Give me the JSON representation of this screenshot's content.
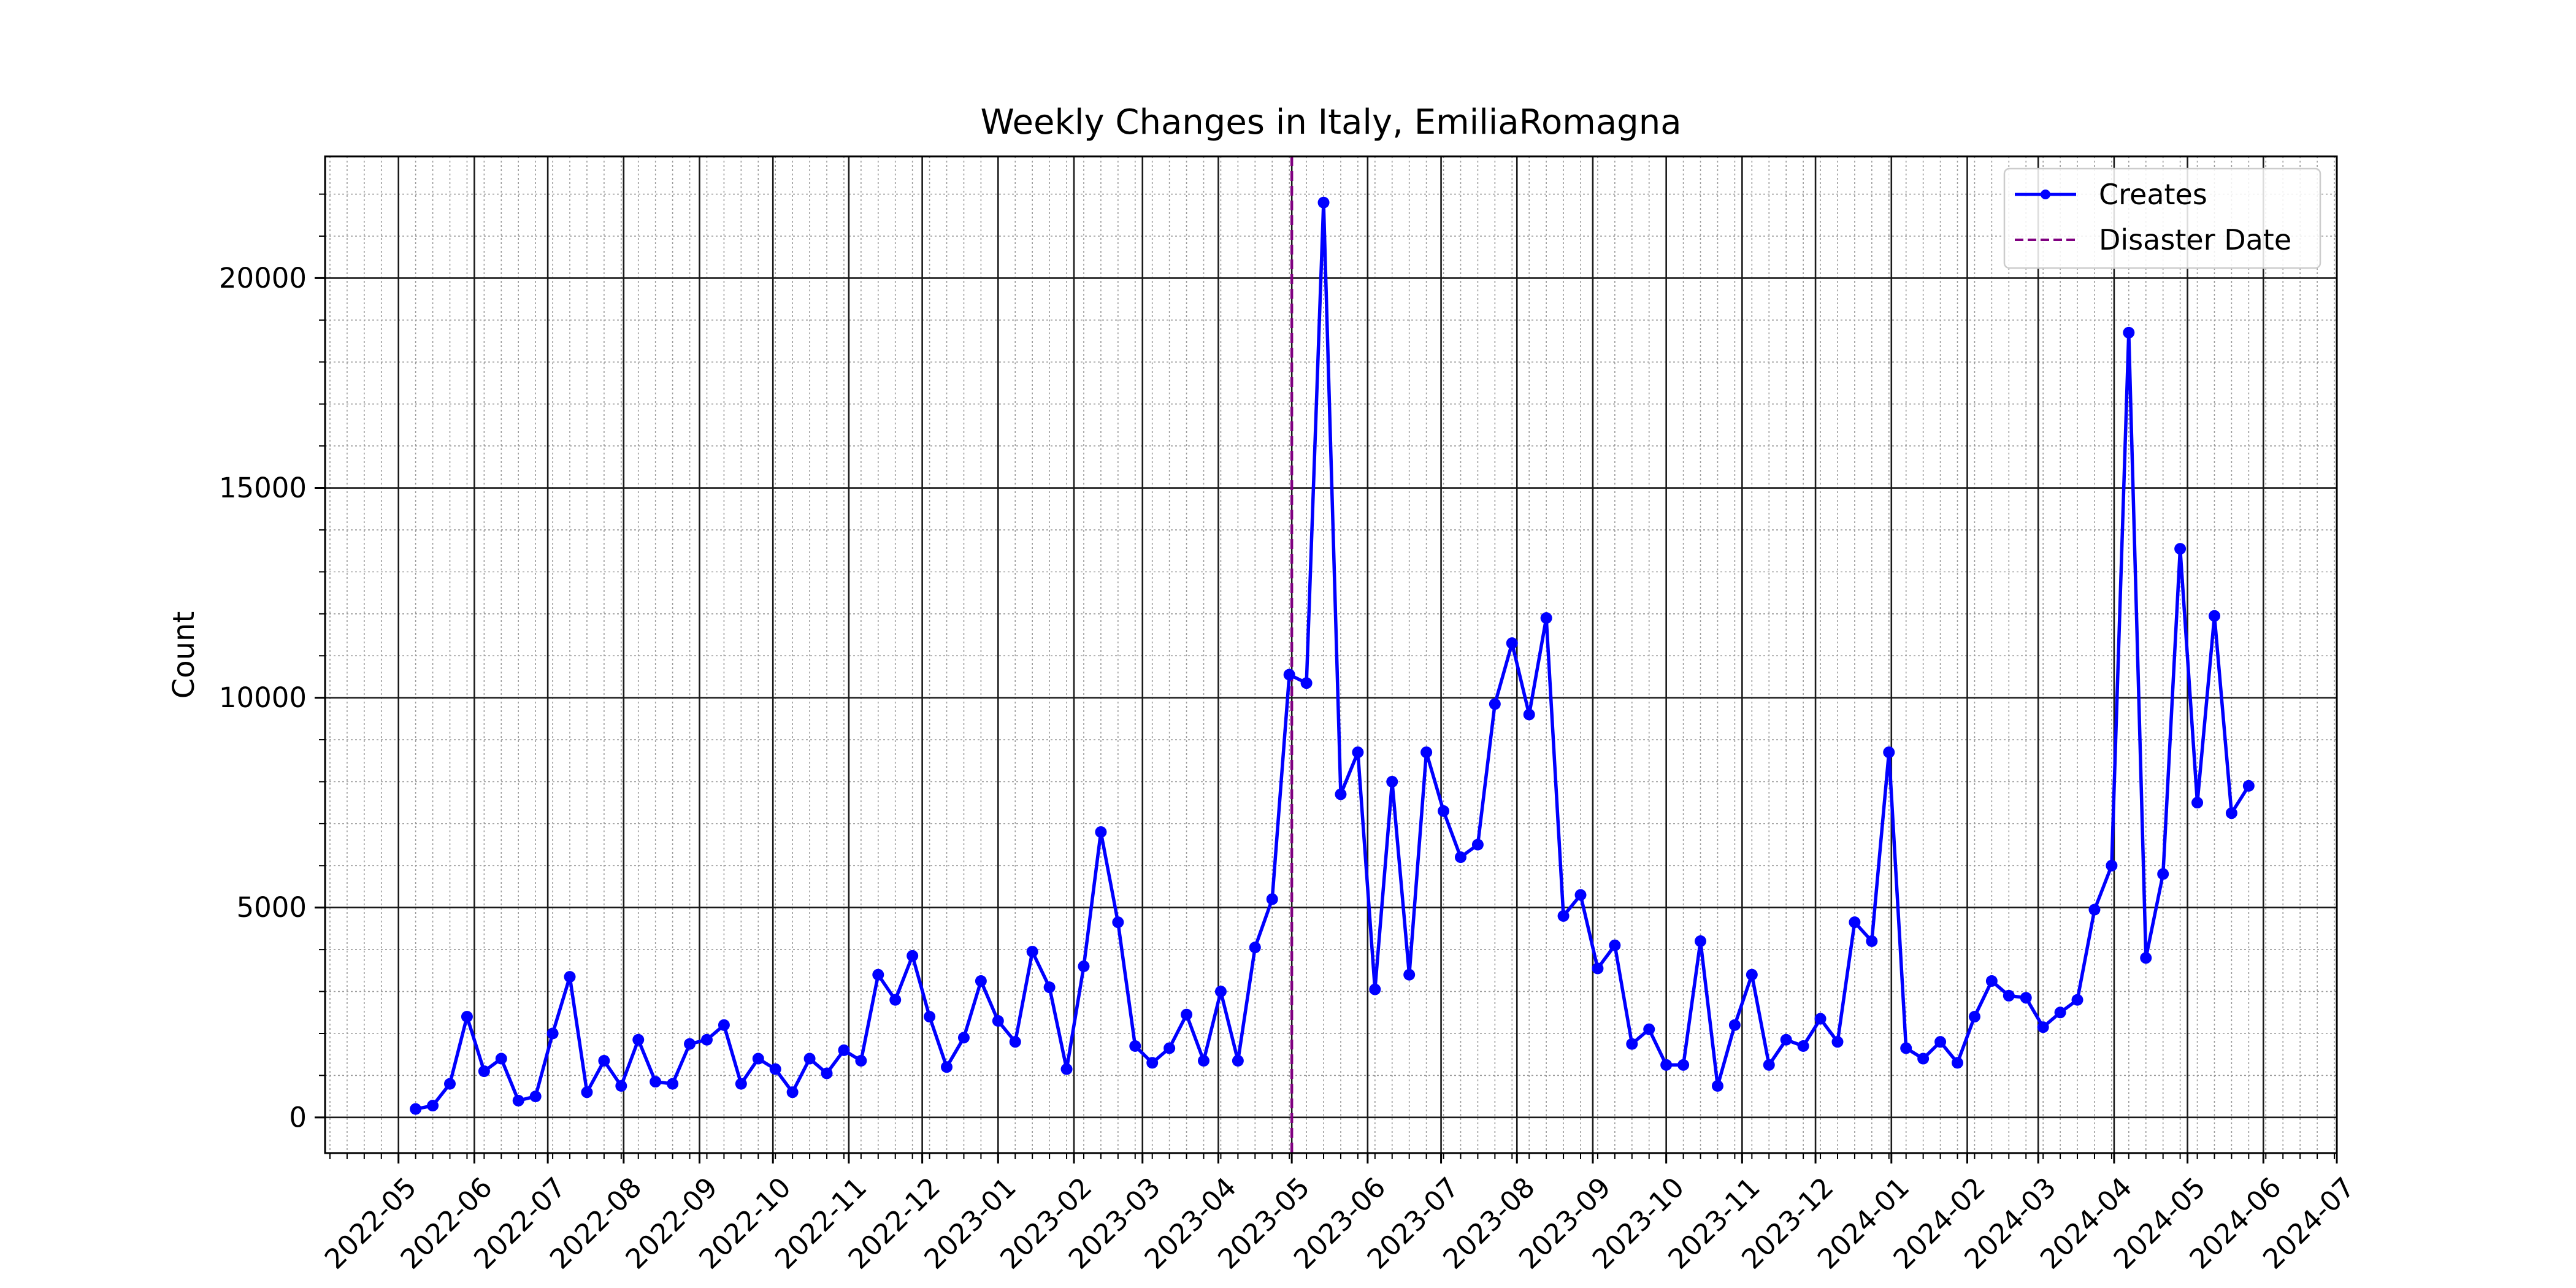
{
  "chart_data": {
    "type": "line",
    "title": "Weekly Changes in Italy, EmiliaRomagna",
    "xlabel": "",
    "ylabel": "Count",
    "x_axis_kind": "date",
    "xlim": [
      "2022-04-01",
      "2024-07-01"
    ],
    "ylim": [
      -850,
      22900
    ],
    "y_ticks": [
      0,
      5000,
      10000,
      15000,
      20000
    ],
    "y_tick_labels": [
      "0",
      "5000",
      "10000",
      "15000",
      "20000"
    ],
    "y_minor_step": 1000,
    "x_ticks": [
      "2022-05-01",
      "2022-06-01",
      "2022-07-01",
      "2022-08-01",
      "2022-09-01",
      "2022-10-01",
      "2022-11-01",
      "2022-12-01",
      "2023-01-01",
      "2023-02-01",
      "2023-03-01",
      "2023-04-01",
      "2023-05-01",
      "2023-06-01",
      "2023-07-01",
      "2023-08-01",
      "2023-09-01",
      "2023-10-01",
      "2023-11-01",
      "2023-12-01",
      "2024-01-01",
      "2024-02-01",
      "2024-03-01",
      "2024-04-01",
      "2024-05-01",
      "2024-06-01",
      "2024-07-01"
    ],
    "x_tick_labels": [
      "2022-05",
      "2022-06",
      "2022-07",
      "2022-08",
      "2022-09",
      "2022-10",
      "2022-11",
      "2022-12",
      "2023-01",
      "2023-02",
      "2023-03",
      "2023-04",
      "2023-05",
      "2023-06",
      "2023-07",
      "2023-08",
      "2023-09",
      "2023-10",
      "2023-11",
      "2023-12",
      "2024-01",
      "2024-02",
      "2024-03",
      "2024-04",
      "2024-05",
      "2024-06",
      "2024-07"
    ],
    "grid": true,
    "legend_position": "upper right",
    "series": [
      {
        "name": "Creates",
        "color": "#0000ff",
        "marker": "circle",
        "x": [
          "2022-05-08",
          "2022-05-15",
          "2022-05-22",
          "2022-05-29",
          "2022-06-05",
          "2022-06-12",
          "2022-06-19",
          "2022-06-26",
          "2022-07-03",
          "2022-07-10",
          "2022-07-17",
          "2022-07-24",
          "2022-07-31",
          "2022-08-07",
          "2022-08-14",
          "2022-08-21",
          "2022-08-28",
          "2022-09-04",
          "2022-09-11",
          "2022-09-18",
          "2022-09-25",
          "2022-10-02",
          "2022-10-09",
          "2022-10-16",
          "2022-10-23",
          "2022-10-30",
          "2022-11-06",
          "2022-11-13",
          "2022-11-20",
          "2022-11-27",
          "2022-12-04",
          "2022-12-11",
          "2022-12-18",
          "2022-12-25",
          "2023-01-01",
          "2023-01-08",
          "2023-01-15",
          "2023-01-22",
          "2023-01-29",
          "2023-02-05",
          "2023-02-12",
          "2023-02-19",
          "2023-02-26",
          "2023-03-05",
          "2023-03-12",
          "2023-03-19",
          "2023-03-26",
          "2023-04-02",
          "2023-04-09",
          "2023-04-16",
          "2023-04-23",
          "2023-04-30",
          "2023-05-07",
          "2023-05-14",
          "2023-05-21",
          "2023-05-28",
          "2023-06-04",
          "2023-06-11",
          "2023-06-18",
          "2023-06-25",
          "2023-07-02",
          "2023-07-09",
          "2023-07-16",
          "2023-07-23",
          "2023-07-30",
          "2023-08-06",
          "2023-08-13",
          "2023-08-20",
          "2023-08-27",
          "2023-09-03",
          "2023-09-10",
          "2023-09-17",
          "2023-09-24",
          "2023-10-01",
          "2023-10-08",
          "2023-10-15",
          "2023-10-22",
          "2023-10-29",
          "2023-11-05",
          "2023-11-12",
          "2023-11-19",
          "2023-11-26",
          "2023-12-03",
          "2023-12-10",
          "2023-12-17",
          "2023-12-24",
          "2023-12-31",
          "2024-01-07",
          "2024-01-14",
          "2024-01-21",
          "2024-01-28",
          "2024-02-04",
          "2024-02-11",
          "2024-02-18",
          "2024-02-25",
          "2024-03-03",
          "2024-03-10",
          "2024-03-17",
          "2024-03-24",
          "2024-03-31",
          "2024-04-07",
          "2024-04-14",
          "2024-04-21",
          "2024-04-28",
          "2024-05-05",
          "2024-05-12",
          "2024-05-19",
          "2024-05-26"
        ],
        "values": [
          200,
          280,
          800,
          2400,
          1100,
          1400,
          400,
          500,
          2000,
          3350,
          600,
          1350,
          750,
          1850,
          850,
          800,
          1750,
          1850,
          2200,
          800,
          1400,
          1150,
          600,
          1400,
          1050,
          1600,
          1350,
          3400,
          2800,
          3850,
          2400,
          1200,
          1900,
          3250,
          2300,
          1800,
          3950,
          3100,
          1150,
          3600,
          6800,
          4650,
          1700,
          1300,
          1650,
          2450,
          1350,
          3000,
          1350,
          4050,
          5200,
          10550,
          10350,
          21800,
          7700,
          8700,
          3050,
          8000,
          3400,
          8700,
          7300,
          6200,
          6500,
          9850,
          11300,
          9600,
          11900,
          4800,
          5300,
          3550,
          4100,
          1750,
          2100,
          1250,
          1250,
          4200,
          750,
          2200,
          3400,
          1250,
          1850,
          1700,
          2350,
          1800,
          4650,
          4200,
          8700,
          1650,
          1400,
          1800,
          1300,
          2400,
          3250,
          2900,
          2850,
          2150,
          2500,
          2800,
          4950,
          6000,
          18700,
          3800,
          5800,
          13550,
          7500,
          11950,
          7250,
          7900
        ]
      },
      {
        "name": "Disaster Date",
        "color": "#800080",
        "line_style": "dashed",
        "x": "2023-05-01"
      }
    ]
  }
}
